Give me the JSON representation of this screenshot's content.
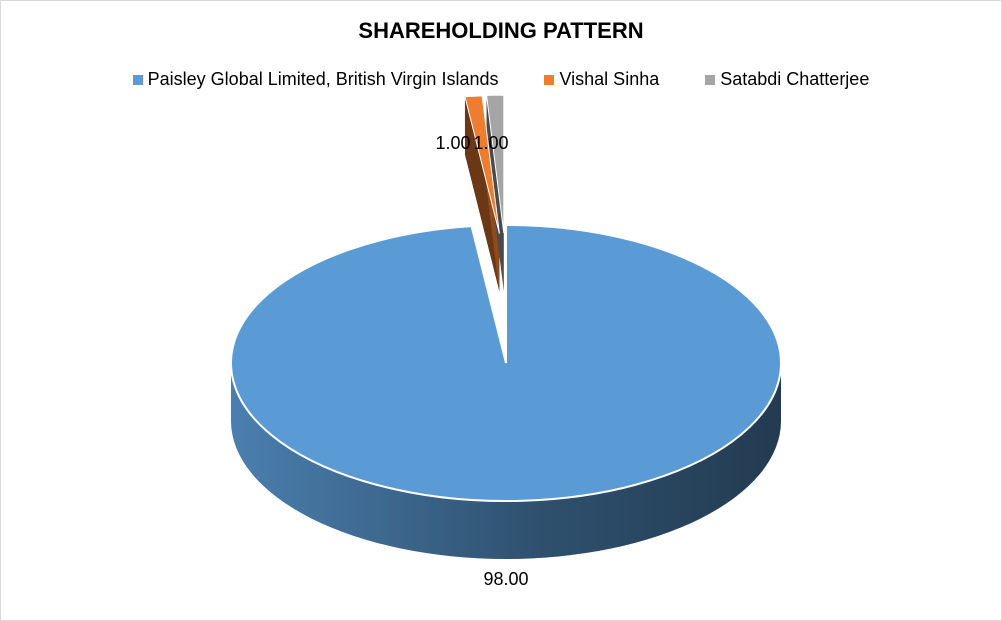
{
  "chart_data": {
    "type": "pie",
    "title": "SHAREHOLDING PATTERN",
    "legend_position": "top",
    "three_d": true,
    "exploded": true,
    "categories": [
      "Paisley Global Limited, British Virgin Islands",
      "Vishal Sinha",
      "Satabdi Chatterjee"
    ],
    "values": [
      98.0,
      1.0,
      1.0
    ],
    "data_labels": [
      "98.00",
      "1.00",
      "1.00"
    ],
    "colors": [
      "#5b9bd5",
      "#ed7d31",
      "#a5a5a5"
    ]
  }
}
